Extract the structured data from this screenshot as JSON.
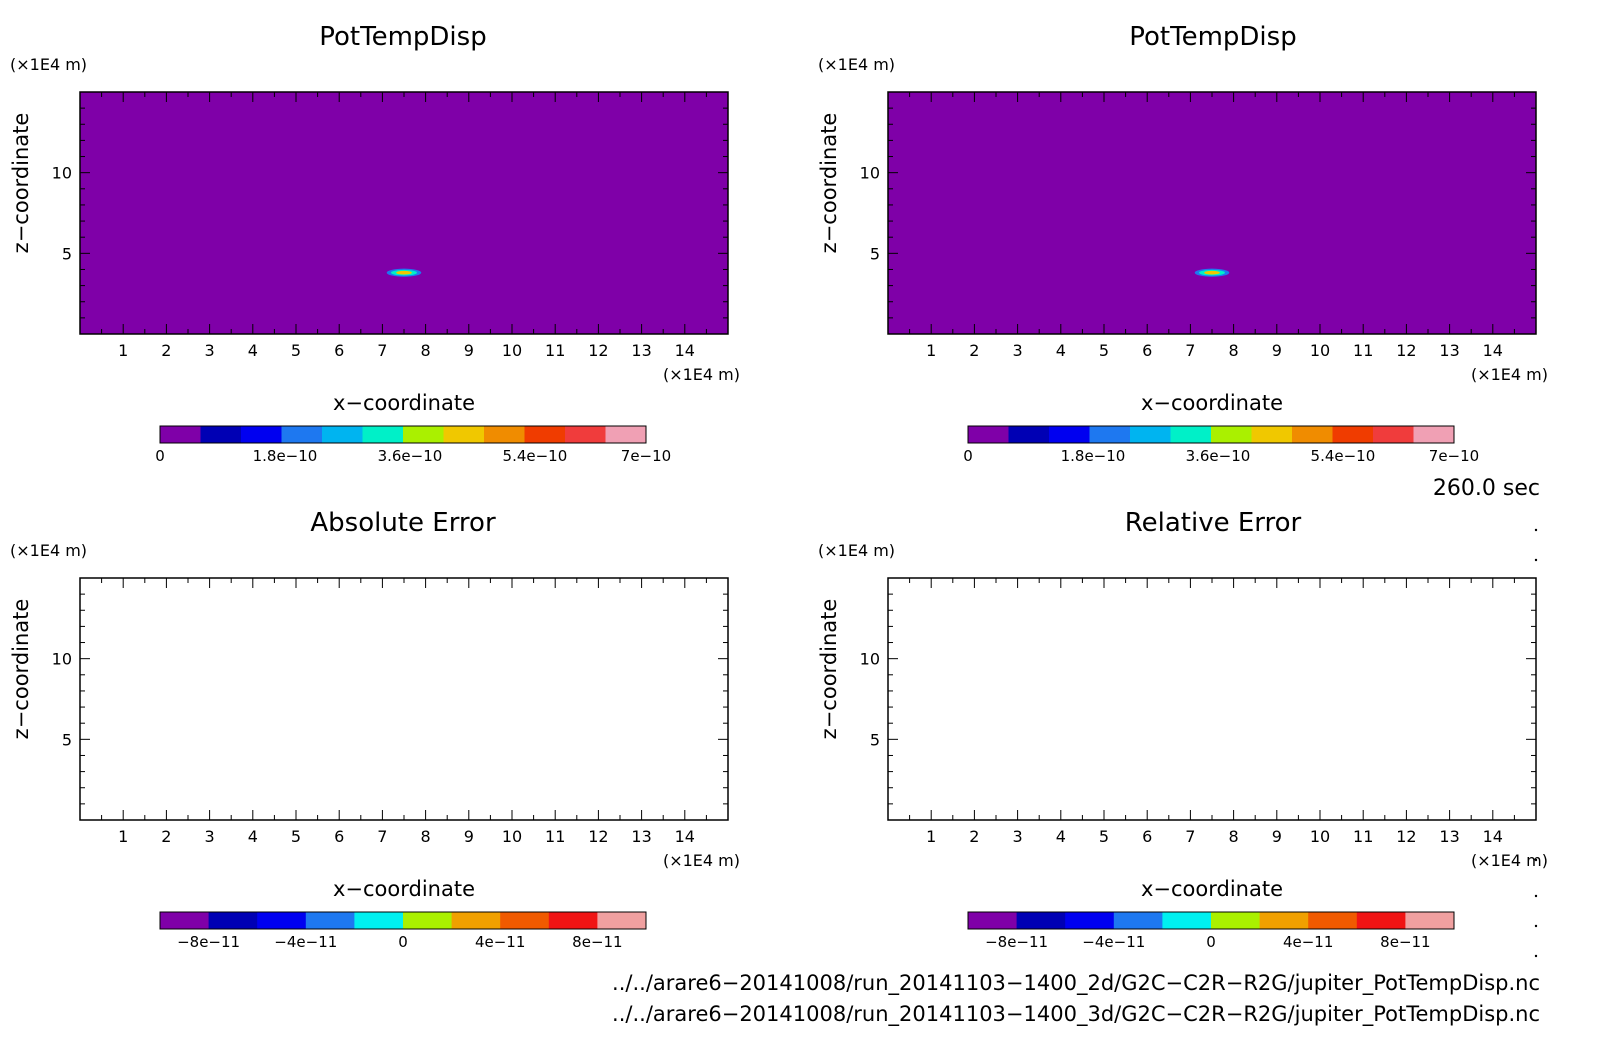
{
  "chart_data": [
    {
      "id": "p1",
      "type": "heatmap",
      "title": "PotTempDisp",
      "xlabel": "x−coordinate",
      "ylabel": "z−coordinate",
      "x_unit": "(×1E4 m)",
      "y_unit": "(×1E4 m)",
      "xlim": [
        0,
        15
      ],
      "ylim": [
        0,
        15
      ],
      "xticks": [
        "1",
        "2",
        "3",
        "4",
        "5",
        "6",
        "7",
        "8",
        "9",
        "10",
        "11",
        "12",
        "13",
        "14"
      ],
      "yticks": [
        "5",
        "10"
      ],
      "background_color": "#7f00a8",
      "feature": {
        "x_center": 7.5,
        "z_center": 3.8,
        "x_halfwidth": 0.4,
        "z_halfheight": 0.25
      },
      "colorbar": {
        "colors": [
          "#7f00a8",
          "#0000b4",
          "#0000f0",
          "#1e78f0",
          "#00b4f0",
          "#00f0c8",
          "#aaf000",
          "#f0c800",
          "#f08c00",
          "#f03c00",
          "#f03c3c",
          "#f0a0b4"
        ],
        "labels": [
          "0",
          "1.8e−10",
          "3.6e−10",
          "5.4e−10",
          "7e−10"
        ],
        "label_values": [
          0,
          1.8e-10,
          3.6e-10,
          5.4e-10,
          7e-10
        ],
        "range": [
          0,
          7e-10
        ]
      }
    },
    {
      "id": "p2",
      "type": "heatmap",
      "title": "PotTempDisp",
      "xlabel": "x−coordinate",
      "ylabel": "z−coordinate",
      "x_unit": "(×1E4 m)",
      "y_unit": "(×1E4 m)",
      "xlim": [
        0,
        15
      ],
      "ylim": [
        0,
        15
      ],
      "xticks": [
        "1",
        "2",
        "3",
        "4",
        "5",
        "6",
        "7",
        "8",
        "9",
        "10",
        "11",
        "12",
        "13",
        "14"
      ],
      "yticks": [
        "5",
        "10"
      ],
      "background_color": "#7f00a8",
      "feature": {
        "x_center": 7.5,
        "z_center": 3.8,
        "x_halfwidth": 0.4,
        "z_halfheight": 0.25
      },
      "colorbar": {
        "colors": [
          "#7f00a8",
          "#0000b4",
          "#0000f0",
          "#1e78f0",
          "#00b4f0",
          "#00f0c8",
          "#aaf000",
          "#f0c800",
          "#f08c00",
          "#f03c00",
          "#f03c3c",
          "#f0a0b4"
        ],
        "labels": [
          "0",
          "1.8e−10",
          "3.6e−10",
          "5.4e−10",
          "7e−10"
        ],
        "label_values": [
          0,
          1.8e-10,
          3.6e-10,
          5.4e-10,
          7e-10
        ],
        "range": [
          0,
          7e-10
        ]
      }
    },
    {
      "id": "p3",
      "type": "heatmap",
      "title": "Absolute Error",
      "xlabel": "x−coordinate",
      "ylabel": "z−coordinate",
      "x_unit": "(×1E4 m)",
      "y_unit": "(×1E4 m)",
      "xlim": [
        0,
        15
      ],
      "ylim": [
        0,
        15
      ],
      "xticks": [
        "1",
        "2",
        "3",
        "4",
        "5",
        "6",
        "7",
        "8",
        "9",
        "10",
        "11",
        "12",
        "13",
        "14"
      ],
      "yticks": [
        "5",
        "10"
      ],
      "background_color": "#ffffff",
      "feature": null,
      "colorbar": {
        "colors": [
          "#7f00a8",
          "#0000b4",
          "#0000f0",
          "#1e78f0",
          "#00f0f0",
          "#aaf000",
          "#f0a000",
          "#f05a00",
          "#f01414",
          "#f0a0a0"
        ],
        "labels": [
          "−8e−11",
          "−4e−11",
          "0",
          "4e−11",
          "8e−11"
        ],
        "label_values": [
          -8e-11,
          -4e-11,
          0,
          4e-11,
          8e-11
        ],
        "range": [
          -1e-10,
          1e-10
        ]
      }
    },
    {
      "id": "p4",
      "type": "heatmap",
      "title": "Relative Error",
      "xlabel": "x−coordinate",
      "ylabel": "z−coordinate",
      "x_unit": "(×1E4 m)",
      "y_unit": "(×1E4 m)",
      "xlim": [
        0,
        15
      ],
      "ylim": [
        0,
        15
      ],
      "xticks": [
        "1",
        "2",
        "3",
        "4",
        "5",
        "6",
        "7",
        "8",
        "9",
        "10",
        "11",
        "12",
        "13",
        "14"
      ],
      "yticks": [
        "5",
        "10"
      ],
      "background_color": "#ffffff",
      "feature": null,
      "colorbar": {
        "colors": [
          "#7f00a8",
          "#0000b4",
          "#0000f0",
          "#1e78f0",
          "#00f0f0",
          "#aaf000",
          "#f0a000",
          "#f05a00",
          "#f01414",
          "#f0a0a0"
        ],
        "labels": [
          "−8e−11",
          "−4e−11",
          "0",
          "4e−11",
          "8e−11"
        ],
        "label_values": [
          -8e-11,
          -4e-11,
          0,
          4e-11,
          8e-11
        ],
        "range": [
          -1e-10,
          1e-10
        ]
      }
    }
  ],
  "time_label": "260.0 sec",
  "files": [
    "../../arare6−20141008/run_20141103−1400_2d/G2C−C2R−R2G/jupiter_PotTempDisp.nc",
    "../../arare6−20141008/run_20141103−1400_3d/G2C−C2R−R2G/jupiter_PotTempDisp.nc"
  ]
}
